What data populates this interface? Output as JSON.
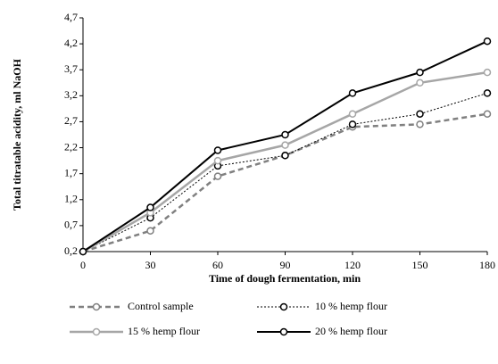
{
  "chart_data": {
    "type": "line",
    "x_label": "Time of dough fermentation, min",
    "y_label": "Total titratable acidity, ml NaOH",
    "x": [
      0,
      30,
      60,
      90,
      120,
      150,
      180
    ],
    "xlim": [
      0,
      180
    ],
    "xticks": [
      0,
      30,
      60,
      90,
      120,
      150,
      180
    ],
    "ylim": [
      0.2,
      4.7
    ],
    "yticks": [
      {
        "value": 0.2,
        "label": "0,2"
      },
      {
        "value": 0.7,
        "label": "0,7"
      },
      {
        "value": 1.2,
        "label": "1,2"
      },
      {
        "value": 1.7,
        "label": "1,7"
      },
      {
        "value": 2.2,
        "label": "2,2"
      },
      {
        "value": 2.7,
        "label": "2,7"
      },
      {
        "value": 3.2,
        "label": "3,2"
      },
      {
        "value": 3.7,
        "label": "3,7"
      },
      {
        "value": 4.2,
        "label": "4,2"
      },
      {
        "value": 4.7,
        "label": "4,7"
      }
    ],
    "grid": false,
    "series": [
      {
        "name": "Control sample",
        "color": "#808080",
        "line_style": "dashed",
        "values": [
          0.2,
          0.6,
          1.65,
          2.05,
          2.6,
          2.65,
          2.85
        ]
      },
      {
        "name": "10 % hemp flour",
        "color": "#000000",
        "line_style": "dotted",
        "values": [
          0.2,
          0.85,
          1.85,
          2.05,
          2.65,
          2.85,
          3.25
        ]
      },
      {
        "name": "15 % hemp flour",
        "color": "#a6a6a6",
        "line_style": "solid",
        "values": [
          0.2,
          0.95,
          1.95,
          2.25,
          2.85,
          3.45,
          3.65
        ]
      },
      {
        "name": "20 % hemp flour",
        "color": "#000000",
        "line_style": "solid",
        "values": [
          0.2,
          1.05,
          2.15,
          2.45,
          3.25,
          3.65,
          4.25
        ]
      }
    ]
  }
}
